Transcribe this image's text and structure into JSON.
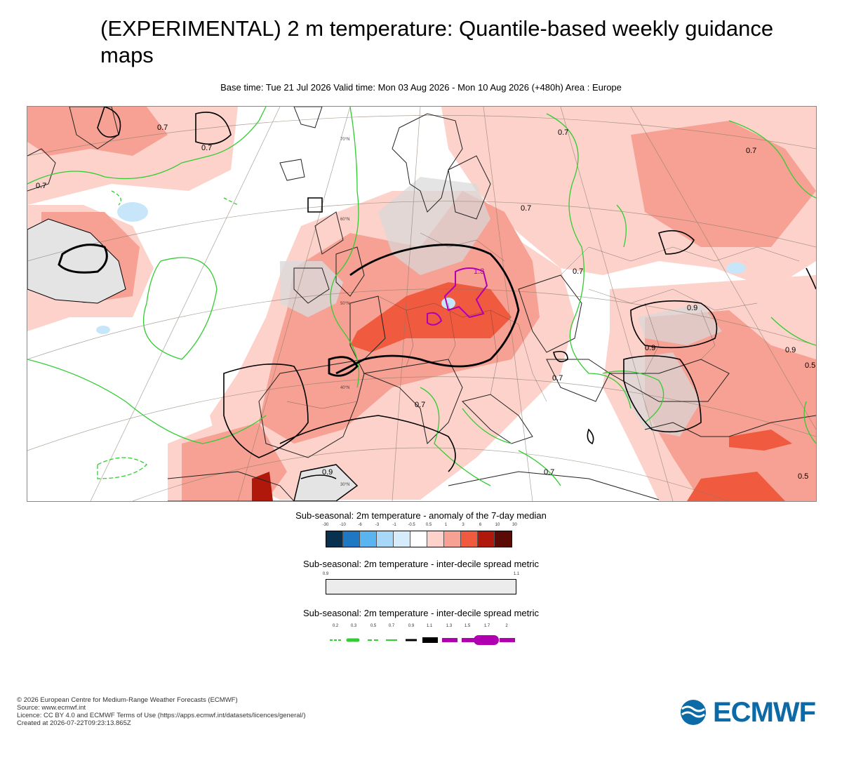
{
  "header": {
    "title": "(EXPERIMENTAL) 2 m temperature: Quantile-based weekly guidance maps",
    "subtitle": "Base time: Tue 21 Jul 2026 Valid time: Mon 03 Aug 2026 - Mon 10 Aug 2026 (+480h) Area : Europe"
  },
  "map": {
    "area": "Europe",
    "contour_labels": [
      "0.7",
      "0.7",
      "0.7",
      "0.7",
      "0.7",
      "0.7",
      "0.7",
      "0.7",
      "0.7",
      "0.7",
      "0.9",
      "0.9",
      "0.9",
      "0.9",
      "0.5",
      "0.5",
      "1.3"
    ],
    "graticule_labels": [
      "70°N",
      "60°N",
      "50°N",
      "40°N",
      "30°N"
    ],
    "colors": {
      "light_pink": "#fcd2cb",
      "pink": "#f6a193",
      "red": "#f05a3e",
      "dark_red": "#b0180c",
      "spread_grey": "#e4e4e4",
      "light_blue": "#c8e6fa",
      "green_contour": "#33cc33",
      "black_contour": "#000000",
      "magenta_contour": "#b000b0"
    }
  },
  "legend_anomaly": {
    "title": "Sub-seasonal: 2m temperature - anomaly of the 7-day median",
    "ticks": [
      "-30",
      "-10",
      "-6",
      "-3",
      "-1",
      "-0.5",
      "0.5",
      "1",
      "3",
      "6",
      "10",
      "30"
    ],
    "colors": [
      "#08304f",
      "#1f78c4",
      "#5ab4f0",
      "#a8d8f8",
      "#d6ecfb",
      "#ffffff",
      "#fcd2cb",
      "#f6a193",
      "#f05a3e",
      "#b0180c",
      "#5c0a06"
    ]
  },
  "legend_spread_shade": {
    "title": "Sub-seasonal: 2m temperature - inter-decile spread metric",
    "ticks": [
      "0.9",
      "1.1"
    ],
    "color": "#ececec"
  },
  "legend_spread_lines": {
    "title": "Sub-seasonal: 2m temperature - inter-decile spread metric",
    "ticks": [
      "0.2",
      "0.3",
      "0.5",
      "0.7",
      "0.9",
      "1.1",
      "1.3",
      "1.5",
      "1.7",
      "2"
    ]
  },
  "footer": {
    "line1": "© 2026 European Centre for Medium-Range Weather Forecasts (ECMWF)",
    "line2": "Source: www.ecmwf.int",
    "line3": "Licence: CC BY 4.0 and ECMWF Terms of Use (https://apps.ecmwf.int/datasets/licences/general/)",
    "line4": "Created at 2026-07-22T09:23:13.865Z"
  },
  "logo": {
    "text": "ECMWF",
    "color": "#0c6aa6"
  }
}
